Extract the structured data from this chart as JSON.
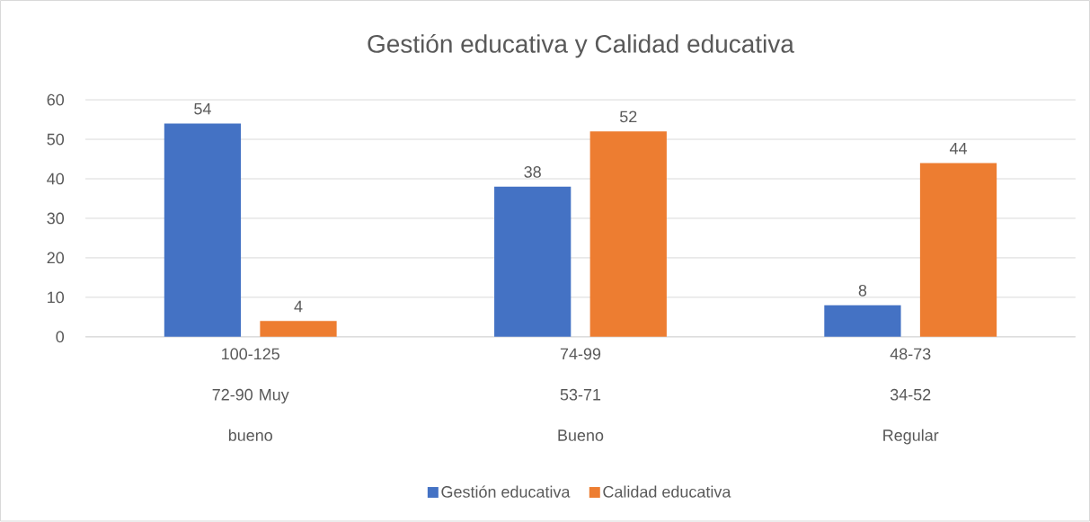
{
  "chart_data": {
    "type": "bar",
    "title": "Gestión educativa y Calidad educativa",
    "categories": [
      "100-125 72-90 Muy bueno",
      "74-99 53-71 Bueno",
      "48-73 34-52 Regular"
    ],
    "series": [
      {
        "name": "Gestión educativa",
        "color": "#4472c4",
        "values": [
          54,
          38,
          8
        ]
      },
      {
        "name": "Calidad educativa",
        "color": "#ed7d31",
        "values": [
          4,
          52,
          44
        ]
      }
    ],
    "ylim": [
      0,
      60
    ],
    "yticks": [
      0,
      10,
      20,
      30,
      40,
      50,
      60
    ],
    "grid": "y",
    "legend": "bottom",
    "data_labels": true
  }
}
